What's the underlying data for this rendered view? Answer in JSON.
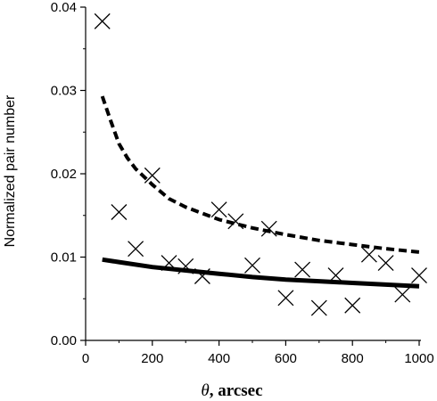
{
  "chart_data": {
    "type": "scatter",
    "xlabel_symbol": "θ",
    "xlabel_unit": ", arcsec",
    "ylabel": "Normalized pair number",
    "xlim": [
      0,
      1000
    ],
    "ylim": [
      0,
      0.04
    ],
    "xticks": [
      0,
      200,
      400,
      600,
      800,
      1000
    ],
    "yticks": [
      0,
      0.01,
      0.02,
      0.03,
      0.04
    ],
    "ytick_labels": [
      "0.00",
      "0.01",
      "0.02",
      "0.03",
      "0.04"
    ],
    "grid": false,
    "points": {
      "marker": "x",
      "x": [
        50,
        100,
        150,
        200,
        250,
        300,
        350,
        400,
        450,
        500,
        550,
        600,
        650,
        700,
        750,
        800,
        850,
        900,
        950,
        1000
      ],
      "y": [
        0.0383,
        0.0154,
        0.011,
        0.0198,
        0.0093,
        0.0089,
        0.0077,
        0.0157,
        0.0143,
        0.009,
        0.0134,
        0.0051,
        0.0085,
        0.0039,
        0.0078,
        0.0042,
        0.0103,
        0.0093,
        0.0055,
        0.0078
      ]
    },
    "curves": [
      {
        "style": "dashed",
        "x": [
          50,
          75,
          100,
          125,
          150,
          200,
          250,
          300,
          400,
          500,
          600,
          700,
          800,
          900,
          1000
        ],
        "y": [
          0.0293,
          0.0264,
          0.0236,
          0.0219,
          0.0206,
          0.0187,
          0.017,
          0.016,
          0.0145,
          0.0135,
          0.0127,
          0.012,
          0.0115,
          0.011,
          0.0106
        ]
      },
      {
        "style": "solid",
        "x": [
          50,
          100,
          200,
          300,
          400,
          500,
          600,
          700,
          800,
          900,
          1000
        ],
        "y": [
          0.0097,
          0.0094,
          0.0088,
          0.0084,
          0.008,
          0.0076,
          0.0073,
          0.0071,
          0.0069,
          0.0067,
          0.0065
        ]
      }
    ]
  }
}
